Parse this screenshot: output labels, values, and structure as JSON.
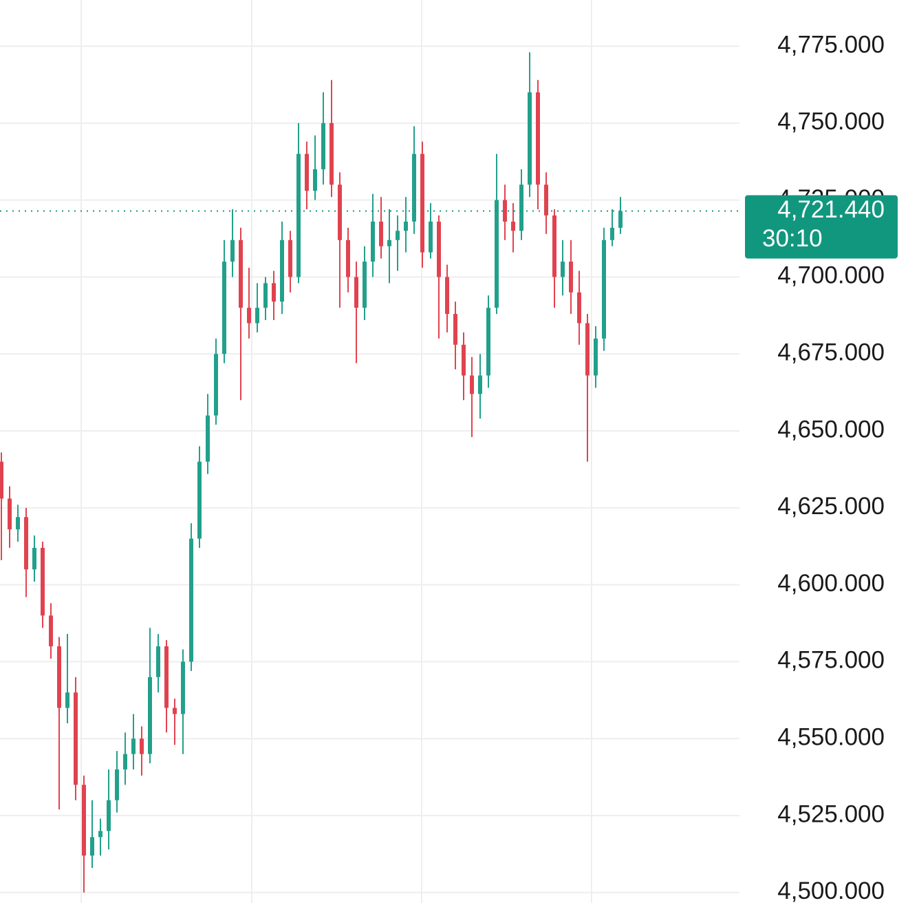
{
  "chart_data": {
    "type": "candlestick",
    "up_color": "#22a08b",
    "down_color": "#e0434f",
    "ylim": [
      4496.6,
      4790
    ],
    "yticks": [
      {
        "value": 4500,
        "label": "4,500.000"
      },
      {
        "value": 4525,
        "label": "4,525.000"
      },
      {
        "value": 4550,
        "label": "4,550.000"
      },
      {
        "value": 4575,
        "label": "4,575.000"
      },
      {
        "value": 4600,
        "label": "4,600.000"
      },
      {
        "value": 4625,
        "label": "4,625.000"
      },
      {
        "value": 4650,
        "label": "4,650.000"
      },
      {
        "value": 4675,
        "label": "4,675.000"
      },
      {
        "value": 4700,
        "label": "4,700.000"
      },
      {
        "value": 4725,
        "label": "4,725.000"
      },
      {
        "value": 4750,
        "label": "4,750.000"
      },
      {
        "value": 4775,
        "label": "4,775.000"
      }
    ],
    "grid": true,
    "last_price": {
      "value": 4721.44,
      "label": "4,721.440",
      "color": "#12977f"
    },
    "countdown": "30:10",
    "open": [
      4640,
      4628,
      4618,
      4622,
      4605,
      4612,
      4590,
      4580,
      4560,
      4565,
      4535,
      4512,
      4518,
      4520,
      4530,
      4540,
      4545,
      4550,
      4545,
      4570,
      4580,
      4560,
      4558,
      4575,
      4615,
      4640,
      4655,
      4675,
      4705,
      4712,
      4690,
      4685,
      4690,
      4698,
      4692,
      4712,
      4700,
      4740,
      4728,
      4735,
      4750,
      4730,
      4712,
      4700,
      4690,
      4705,
      4718,
      4710,
      4712,
      4715,
      4718,
      4740,
      4708,
      4718,
      4700,
      4688,
      4678,
      4668,
      4662,
      4668,
      4690,
      4725,
      4718,
      4715,
      4730,
      4760,
      4730,
      4720,
      4700,
      4705,
      4695,
      4685,
      4668,
      4680,
      4712,
      4716
    ],
    "high": [
      4643,
      4632,
      4626,
      4625,
      4616,
      4614,
      4594,
      4583,
      4584,
      4570,
      4538,
      4530,
      4524,
      4540,
      4546,
      4552,
      4558,
      4554,
      4586,
      4584,
      4582,
      4563,
      4579,
      4620,
      4645,
      4662,
      4680,
      4712,
      4722,
      4716,
      4703,
      4698,
      4700,
      4702,
      4718,
      4715,
      4750,
      4744,
      4746,
      4760,
      4764,
      4734,
      4716,
      4705,
      4710,
      4727,
      4726,
      4722,
      4720,
      4726,
      4749,
      4744,
      4724,
      4720,
      4704,
      4692,
      4682,
      4674,
      4675,
      4694,
      4740,
      4730,
      4724,
      4735,
      4773,
      4764,
      4734,
      4722,
      4712,
      4712,
      4702,
      4688,
      4684,
      4716,
      4722,
      4726
    ],
    "low": [
      4608,
      4612,
      4614,
      4596,
      4601,
      4586,
      4576,
      4527,
      4555,
      4530,
      4500,
      4508,
      4512,
      4514,
      4526,
      4535,
      4540,
      4538,
      4542,
      4565,
      4552,
      4548,
      4545,
      4572,
      4612,
      4636,
      4652,
      4672,
      4700,
      4660,
      4680,
      4682,
      4686,
      4686,
      4688,
      4695,
      4698,
      4722,
      4725,
      4730,
      4726,
      4690,
      4695,
      4672,
      4686,
      4700,
      4706,
      4698,
      4702,
      4708,
      4714,
      4703,
      4706,
      4680,
      4682,
      4670,
      4660,
      4648,
      4654,
      4664,
      4688,
      4712,
      4708,
      4712,
      4726,
      4722,
      4714,
      4690,
      4694,
      4688,
      4678,
      4640,
      4664,
      4676,
      4710,
      4714
    ],
    "close": [
      4628,
      4618,
      4622,
      4605,
      4612,
      4590,
      4580,
      4560,
      4565,
      4535,
      4512,
      4518,
      4520,
      4530,
      4540,
      4545,
      4550,
      4545,
      4570,
      4580,
      4560,
      4558,
      4575,
      4615,
      4640,
      4655,
      4675,
      4705,
      4712,
      4690,
      4685,
      4690,
      4698,
      4692,
      4712,
      4700,
      4740,
      4728,
      4735,
      4750,
      4730,
      4712,
      4700,
      4690,
      4705,
      4718,
      4710,
      4712,
      4715,
      4718,
      4740,
      4708,
      4718,
      4700,
      4688,
      4678,
      4668,
      4662,
      4668,
      4690,
      4725,
      4718,
      4715,
      4730,
      4760,
      4730,
      4720,
      4700,
      4705,
      4695,
      4685,
      4668,
      4680,
      4712,
      4716,
      4721.44
    ]
  }
}
